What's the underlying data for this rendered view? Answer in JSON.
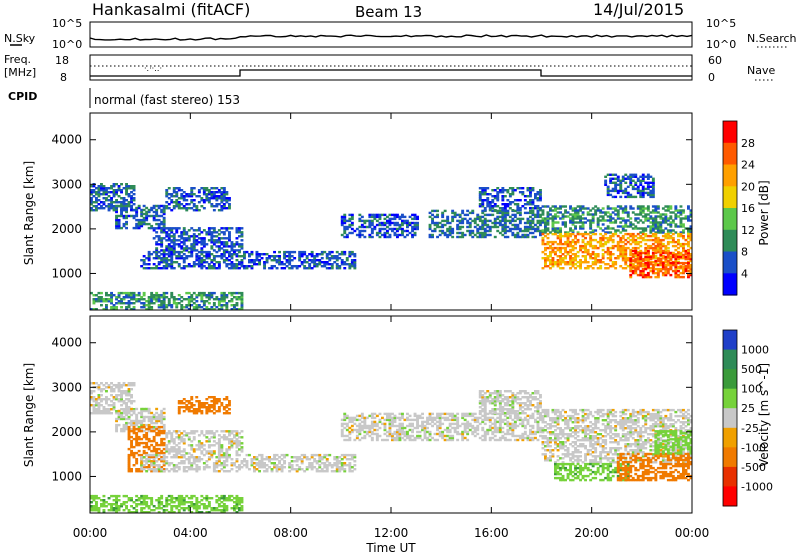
{
  "header": {
    "station": "Hankasalmi (fitACF)",
    "beam": "Beam 13",
    "date": "14/Jul/2015"
  },
  "top_panels": {
    "nsky_label": "N.Sky",
    "nsky_ticks": [
      "10^5",
      "10^0"
    ],
    "nsearch_label": "N.Search",
    "nsearch_ticks": [
      "10^5",
      "10^0"
    ],
    "freq_label_line1": "Freq.",
    "freq_label_line2": "[MHz]",
    "freq_ticks": [
      "18",
      "8"
    ],
    "nave_label": "Nave",
    "nave_ticks": [
      "60",
      "0"
    ],
    "cpid_label": "CPID",
    "cpid_text": "normal (fast stereo) 153"
  },
  "x_axis": {
    "label": "Time UT",
    "ticks": [
      "00:00",
      "04:00",
      "08:00",
      "12:00",
      "16:00",
      "20:00",
      "00:00"
    ]
  },
  "power_panel": {
    "ylabel": "Slant Range [km]",
    "yticks": [
      "4000",
      "3000",
      "2000",
      "1000"
    ],
    "colorbar_label": "Power [dB]",
    "colorbar_ticks": [
      "28",
      "24",
      "20",
      "16",
      "12",
      "8",
      "4"
    ],
    "colorbar_colors": [
      "#ff0000",
      "#ff5a00",
      "#ffa000",
      "#f0d000",
      "#5cc84a",
      "#2e8b57",
      "#1a4fc8",
      "#0000ff"
    ]
  },
  "velocity_panel": {
    "ylabel": "Slant Range [km]",
    "yticks": [
      "4000",
      "3000",
      "2000",
      "1000"
    ],
    "colorbar_label": "Velocity [m s^-1]",
    "colorbar_ticks": [
      "1000",
      "500",
      "100",
      "25",
      "-25",
      "-100",
      "-500",
      "-1000"
    ],
    "colorbar_colors": [
      "#1f3fc8",
      "#2e8b57",
      "#3a9a3a",
      "#76d23a",
      "#c8c8c8",
      "#f0a000",
      "#f07a00",
      "#e83000",
      "#ff0000"
    ]
  },
  "chart_data": [
    {
      "type": "heatmap",
      "title": "Power",
      "xlabel": "Time UT",
      "ylabel": "Slant Range [km]",
      "xlim": [
        0,
        24
      ],
      "ylim": [
        180,
        4600
      ],
      "value_label": "Power [dB]",
      "clim": [
        0,
        30
      ],
      "echo_regions": [
        {
          "t0": 0.0,
          "t1": 6.0,
          "r0": 180,
          "r1": 550,
          "level": 10
        },
        {
          "t0": 0.0,
          "t1": 1.8,
          "r0": 2400,
          "r1": 3000,
          "level": 7
        },
        {
          "t0": 1.0,
          "t1": 3.0,
          "r0": 2000,
          "r1": 2500,
          "level": 7
        },
        {
          "t0": 2.5,
          "t1": 6.0,
          "r0": 1500,
          "r1": 2000,
          "level": 6
        },
        {
          "t0": 2.0,
          "t1": 10.5,
          "r0": 1100,
          "r1": 1500,
          "level": 6
        },
        {
          "t0": 3.0,
          "t1": 5.5,
          "r0": 2400,
          "r1": 2900,
          "level": 6
        },
        {
          "t0": 10.0,
          "t1": 13.0,
          "r0": 1800,
          "r1": 2300,
          "level": 6
        },
        {
          "t0": 13.5,
          "t1": 18.0,
          "r0": 1800,
          "r1": 2400,
          "level": 8
        },
        {
          "t0": 15.5,
          "t1": 18.0,
          "r0": 2400,
          "r1": 2900,
          "level": 6
        },
        {
          "t0": 18.0,
          "t1": 24.0,
          "r0": 1900,
          "r1": 2500,
          "level": 10
        },
        {
          "t0": 18.0,
          "t1": 24.0,
          "r0": 1100,
          "r1": 1900,
          "level": 22
        },
        {
          "t0": 21.5,
          "t1": 24.0,
          "r0": 900,
          "r1": 1500,
          "level": 26
        },
        {
          "t0": 20.5,
          "t1": 22.5,
          "r0": 2700,
          "r1": 3200,
          "level": 6
        }
      ]
    },
    {
      "type": "heatmap",
      "title": "Velocity",
      "xlabel": "Time UT",
      "ylabel": "Slant Range [km]",
      "xlim": [
        0,
        24
      ],
      "ylim": [
        180,
        4600
      ],
      "value_label": "Velocity [m s^-1]",
      "clim": [
        -1000,
        1000
      ],
      "echo_regions": [
        {
          "t0": 0.0,
          "t1": 6.0,
          "r0": 180,
          "r1": 550,
          "level": 80
        },
        {
          "t0": 0.0,
          "t1": 1.8,
          "r0": 2400,
          "r1": 3100,
          "level": 0
        },
        {
          "t0": 1.0,
          "t1": 3.0,
          "r0": 2000,
          "r1": 2500,
          "level": 0
        },
        {
          "t0": 1.5,
          "t1": 3.0,
          "r0": 1100,
          "r1": 2100,
          "level": -300
        },
        {
          "t0": 3.0,
          "t1": 6.0,
          "r0": 1500,
          "r1": 2000,
          "level": 0
        },
        {
          "t0": 3.5,
          "t1": 5.5,
          "r0": 2400,
          "r1": 2800,
          "level": -400
        },
        {
          "t0": 2.0,
          "t1": 10.5,
          "r0": 1100,
          "r1": 1500,
          "level": 0
        },
        {
          "t0": 10.0,
          "t1": 18.0,
          "r0": 1800,
          "r1": 2400,
          "level": 0
        },
        {
          "t0": 15.5,
          "t1": 18.0,
          "r0": 2400,
          "r1": 2900,
          "level": 0
        },
        {
          "t0": 18.0,
          "t1": 24.0,
          "r0": 1300,
          "r1": 2500,
          "level": 0
        },
        {
          "t0": 18.5,
          "t1": 21.5,
          "r0": 900,
          "r1": 1300,
          "level": 80
        },
        {
          "t0": 21.0,
          "t1": 24.0,
          "r0": 900,
          "r1": 1500,
          "level": -200
        },
        {
          "t0": 22.5,
          "t1": 24.0,
          "r0": 1500,
          "r1": 2000,
          "level": 70
        }
      ]
    }
  ]
}
